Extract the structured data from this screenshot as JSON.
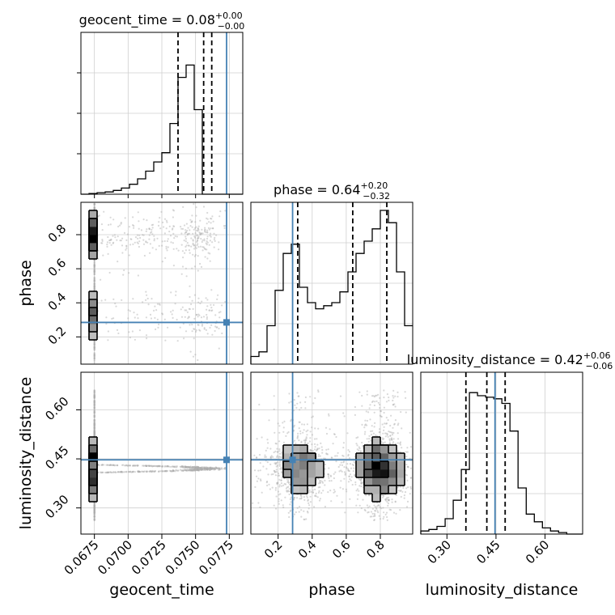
{
  "chart_data": {
    "type": "corner",
    "parameters": [
      "geocent_time",
      "phase",
      "luminosity_distance"
    ],
    "axis_labels": {
      "geocent_time": "geocent_time",
      "phase": "phase",
      "luminosity_distance": "luminosity_distance"
    },
    "titles": {
      "geocent_time": {
        "label": "geocent_time",
        "median": "0.08",
        "plus": "+0.00",
        "minus": "−0.00"
      },
      "phase": {
        "label": "phase",
        "median": "0.64",
        "plus": "+0.20",
        "minus": "−0.32"
      },
      "luminosity_distance": {
        "label": "luminosity_distance",
        "median": "0.42",
        "plus": "+0.06",
        "minus": "−0.06"
      }
    },
    "ranges": {
      "geocent_time": [
        0.0665,
        0.0785
      ],
      "phase": [
        0.04,
        0.99
      ],
      "luminosity_distance": [
        0.22,
        0.715
      ]
    },
    "ticks": {
      "geocent_time": {
        "values": [
          0.0675,
          0.07,
          0.0725,
          0.075,
          0.0775
        ],
        "labels": [
          "0.0675",
          "0.0700",
          "0.0725",
          "0.0750",
          "0.0775"
        ]
      },
      "phase": {
        "values": [
          0.2,
          0.4,
          0.6,
          0.8
        ],
        "labels": [
          "0.2",
          "0.4",
          "0.6",
          "0.8"
        ]
      },
      "luminosity_distance": {
        "values": [
          0.3,
          0.45,
          0.6
        ],
        "labels": [
          "0.30",
          "0.45",
          "0.60"
        ]
      }
    },
    "truths": {
      "geocent_time": 0.0773,
      "phase": 0.285,
      "luminosity_distance": 0.447
    },
    "quantiles": {
      "geocent_time": [
        0.0737,
        0.0756,
        0.0762
      ],
      "phase": [
        0.315,
        0.638,
        0.838
      ],
      "luminosity_distance": [
        0.358,
        0.422,
        0.478
      ]
    },
    "histograms": {
      "geocent_time": {
        "edges_start": 0.0665,
        "bin_width": 0.0006,
        "counts": [
          0,
          0.005,
          0.01,
          0.015,
          0.025,
          0.04,
          0.065,
          0.1,
          0.15,
          0.21,
          0.27,
          0.46,
          0.76,
          0.84,
          0.55,
          0,
          0,
          0,
          0,
          0
        ]
      },
      "phase": {
        "edges_start": 0.04,
        "bin_width": 0.0475,
        "counts": [
          0.05,
          0.08,
          0.25,
          0.48,
          0.72,
          0.78,
          0.5,
          0.4,
          0.36,
          0.38,
          0.4,
          0.47,
          0.6,
          0.72,
          0.8,
          0.88,
          1.0,
          0.92,
          0.6,
          0.25
        ]
      },
      "luminosity_distance": {
        "edges_start": 0.22,
        "bin_width": 0.0248,
        "counts": [
          0.02,
          0.03,
          0.05,
          0.1,
          0.22,
          0.42,
          0.92,
          0.9,
          0.89,
          0.88,
          0.85,
          0.67,
          0.3,
          0.13,
          0.08,
          0.04,
          0.02,
          0.01,
          0,
          0
        ]
      }
    },
    "grid": true,
    "point_color": "#aaaaaa",
    "truth_color": "#4682b4",
    "hist_color": "#000000"
  }
}
